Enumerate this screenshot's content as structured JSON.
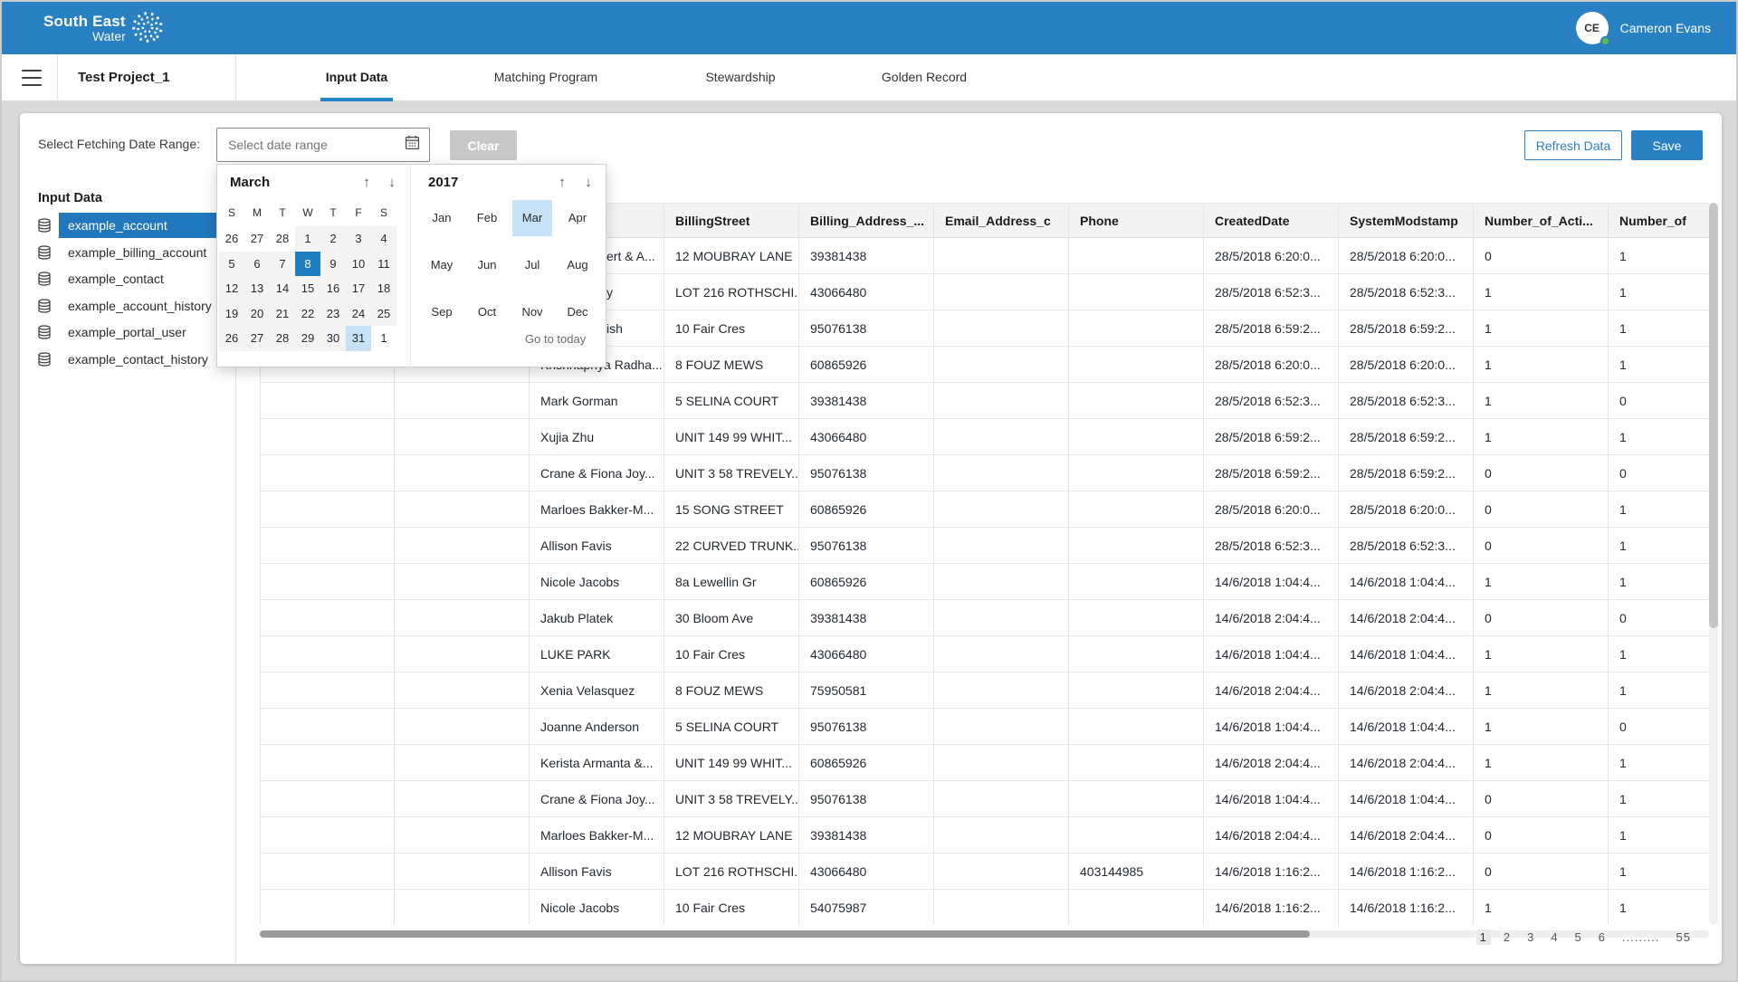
{
  "header": {
    "logo_line1": "South East",
    "logo_line2": "Water",
    "user_initials": "CE",
    "user_name": "Cameron Evans"
  },
  "nav": {
    "project": "Test Project_1",
    "tabs": [
      {
        "label": "Input Data",
        "active": true
      },
      {
        "label": "Matching Program",
        "active": false
      },
      {
        "label": "Stewardship",
        "active": false
      },
      {
        "label": "Golden Record",
        "active": false
      }
    ]
  },
  "toolbar": {
    "fetch_label": "Select Fetching Date Range:",
    "date_placeholder": "Select date range",
    "clear_label": "Clear",
    "refresh_label": "Refresh Data",
    "save_label": "Save"
  },
  "sidebar": {
    "title": "Input Data",
    "items": [
      {
        "label": "example_account",
        "selected": true
      },
      {
        "label": "example_billing_account",
        "selected": false
      },
      {
        "label": "example_contact",
        "selected": false
      },
      {
        "label": "example_account_history",
        "selected": false
      },
      {
        "label": "example_portal_user",
        "selected": false
      },
      {
        "label": "example_contact_history",
        "selected": false
      }
    ]
  },
  "calendar": {
    "month": "March",
    "year": "2017",
    "up_arrow": "↑",
    "down_arrow": "↓",
    "day_headers": [
      "S",
      "M",
      "T",
      "W",
      "T",
      "F",
      "S"
    ],
    "weeks": [
      [
        {
          "d": "26",
          "out": true
        },
        {
          "d": "27",
          "out": true
        },
        {
          "d": "28",
          "out": true
        },
        {
          "d": "1"
        },
        {
          "d": "2"
        },
        {
          "d": "3"
        },
        {
          "d": "4"
        }
      ],
      [
        {
          "d": "5"
        },
        {
          "d": "6"
        },
        {
          "d": "7"
        },
        {
          "d": "8",
          "selected": true
        },
        {
          "d": "9"
        },
        {
          "d": "10"
        },
        {
          "d": "11"
        }
      ],
      [
        {
          "d": "12"
        },
        {
          "d": "13"
        },
        {
          "d": "14"
        },
        {
          "d": "15"
        },
        {
          "d": "16"
        },
        {
          "d": "17"
        },
        {
          "d": "18"
        }
      ],
      [
        {
          "d": "19"
        },
        {
          "d": "20"
        },
        {
          "d": "21"
        },
        {
          "d": "22"
        },
        {
          "d": "23"
        },
        {
          "d": "24"
        },
        {
          "d": "25"
        }
      ],
      [
        {
          "d": "26"
        },
        {
          "d": "27"
        },
        {
          "d": "28"
        },
        {
          "d": "29"
        },
        {
          "d": "30"
        },
        {
          "d": "31",
          "highlight": true
        },
        {
          "d": "1",
          "out": true
        }
      ]
    ],
    "months": [
      [
        {
          "m": "Jan"
        },
        {
          "m": "Feb"
        },
        {
          "m": "Mar",
          "highlight": true
        },
        {
          "m": "Apr"
        }
      ],
      [
        {
          "m": "May"
        },
        {
          "m": "Jun"
        },
        {
          "m": "Jul"
        },
        {
          "m": "Aug"
        }
      ],
      [
        {
          "m": "Sep"
        },
        {
          "m": "Oct"
        },
        {
          "m": "Nov"
        },
        {
          "m": "Dec"
        }
      ]
    ],
    "go_to_today": "Go to today"
  },
  "table": {
    "columns": [
      "",
      "",
      "",
      "BillingStreet",
      "Billing_Address_...",
      "Email_Address_c",
      "Phone",
      "CreatedDate",
      "SystemModstamp",
      "Number_of_Acti...",
      "Number_of"
    ],
    "rows": [
      [
        "",
        "",
        "ert & A...",
        "12 MOUBRAY LANE",
        "39381438",
        "",
        "",
        "28/5/2018 6:20:0...",
        "28/5/2018 6:20:0...",
        "0",
        "1"
      ],
      [
        "",
        "",
        "y",
        "LOT 216 ROTHSCHI...",
        "43066480",
        "",
        "",
        "28/5/2018 6:52:3...",
        "28/5/2018 6:52:3...",
        "1",
        "1"
      ],
      [
        "",
        "",
        "kish",
        "10 Fair Cres",
        "95076138",
        "",
        "",
        "28/5/2018 6:59:2...",
        "28/5/2018 6:59:2...",
        "1",
        "1"
      ],
      [
        "",
        "",
        "Krishnapriya Radha...",
        "8 FOUZ MEWS",
        "60865926",
        "",
        "",
        "28/5/2018 6:20:0...",
        "28/5/2018 6:20:0...",
        "1",
        "1"
      ],
      [
        "",
        "",
        "Mark Gorman",
        "5 SELINA COURT",
        "39381438",
        "",
        "",
        "28/5/2018 6:52:3...",
        "28/5/2018 6:52:3...",
        "1",
        "0"
      ],
      [
        "",
        "",
        "Xujia Zhu",
        "UNIT 149 99 WHIT...",
        "43066480",
        "",
        "",
        "28/5/2018 6:59:2...",
        "28/5/2018 6:59:2...",
        "1",
        "1"
      ],
      [
        "",
        "",
        "Crane & Fiona Joy...",
        "UNIT 3 58 TREVELY...",
        "95076138",
        "",
        "",
        "28/5/2018 6:59:2...",
        "28/5/2018 6:59:2...",
        "0",
        "0"
      ],
      [
        "",
        "",
        "Marloes Bakker-M...",
        "15 SONG STREET",
        "60865926",
        "",
        "",
        "28/5/2018 6:20:0...",
        "28/5/2018 6:20:0...",
        "0",
        "1"
      ],
      [
        "",
        "",
        "Allison Favis",
        "22 CURVED TRUNK...",
        "95076138",
        "",
        "",
        "28/5/2018 6:52:3...",
        "28/5/2018 6:52:3...",
        "0",
        "1"
      ],
      [
        "",
        "",
        "Nicole Jacobs",
        "8a Lewellin Gr",
        "60865926",
        "",
        "",
        "14/6/2018 1:04:4...",
        "14/6/2018 1:04:4...",
        "1",
        "1"
      ],
      [
        "",
        "",
        "Jakub Platek",
        "30 Bloom Ave",
        "39381438",
        "",
        "",
        "14/6/2018 2:04:4...",
        "14/6/2018 2:04:4...",
        "0",
        "0"
      ],
      [
        "",
        "",
        "LUKE PARK",
        "10 Fair Cres",
        "43066480",
        "",
        "",
        "14/6/2018 1:04:4...",
        "14/6/2018 1:04:4...",
        "1",
        "1"
      ],
      [
        "",
        "",
        "Xenia Velasquez",
        "8 FOUZ MEWS",
        "75950581",
        "",
        "",
        "14/6/2018 2:04:4...",
        "14/6/2018 2:04:4...",
        "1",
        "1"
      ],
      [
        "",
        "",
        "Joanne Anderson",
        "5 SELINA COURT",
        "95076138",
        "",
        "",
        "14/6/2018 1:04:4...",
        "14/6/2018 1:04:4...",
        "1",
        "0"
      ],
      [
        "",
        "",
        "Kerista Armanta &...",
        "UNIT 149 99 WHIT...",
        "60865926",
        "",
        "",
        "14/6/2018 2:04:4...",
        "14/6/2018 2:04:4...",
        "1",
        "1"
      ],
      [
        "",
        "",
        "Crane & Fiona Joy...",
        "UNIT 3 58 TREVELY...",
        "95076138",
        "",
        "",
        "14/6/2018 1:04:4...",
        "14/6/2018 1:04:4...",
        "0",
        "1"
      ],
      [
        "",
        "",
        "Marloes Bakker-M...",
        "12 MOUBRAY LANE",
        "39381438",
        "",
        "",
        "14/6/2018 2:04:4...",
        "14/6/2018 2:04:4...",
        "0",
        "1"
      ],
      [
        "",
        "",
        "Allison Favis",
        "LOT 216 ROTHSCHI...",
        "43066480",
        "",
        "403144985",
        "14/6/2018 1:16:2...",
        "14/6/2018 1:16:2...",
        "0",
        "1"
      ],
      [
        "",
        "",
        "Nicole Jacobs",
        "10 Fair Cres",
        "54075987",
        "",
        "",
        "14/6/2018 1:16:2...",
        "14/6/2018 1:16:2...",
        "1",
        "1"
      ]
    ]
  },
  "pagination": {
    "pages": [
      {
        "label": "1",
        "current": true
      },
      {
        "label": "2"
      },
      {
        "label": "3"
      },
      {
        "label": "4"
      },
      {
        "label": "5"
      },
      {
        "label": "6"
      },
      {
        "label": ".........",
        "dots": true
      },
      {
        "label": "55"
      }
    ]
  },
  "colors": {
    "brand_blue": "#2981c4",
    "selection_blue": "#1f7ec0",
    "highlight_blue": "#c7e2f6",
    "presence_green": "#5fbe41"
  }
}
